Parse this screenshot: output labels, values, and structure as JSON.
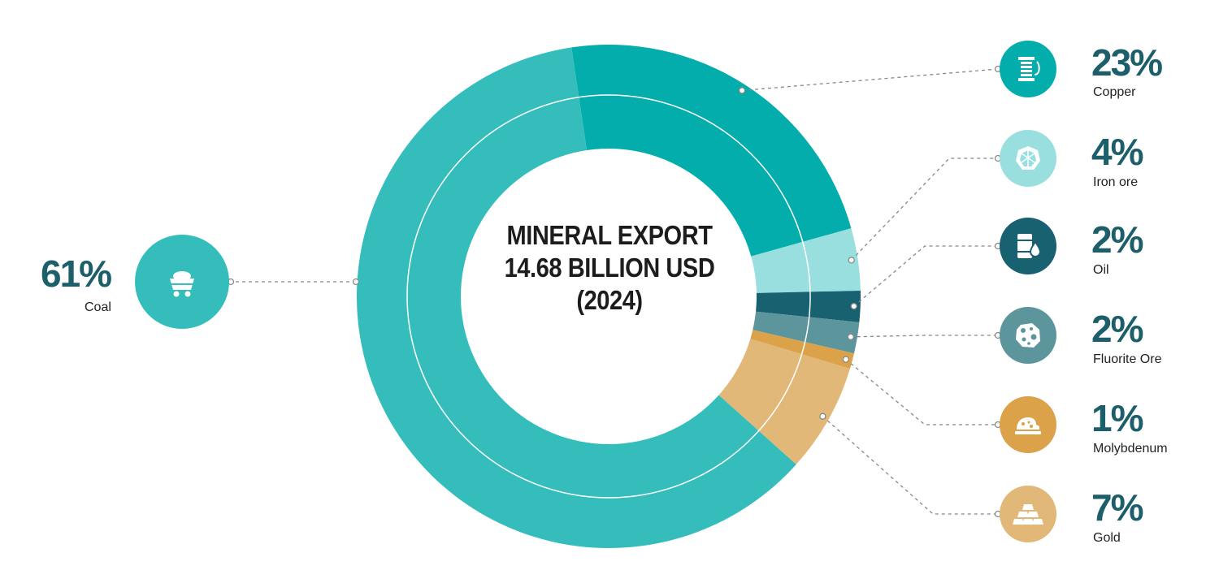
{
  "center_title": "MINERAL EXPORT 14.68 BILLION USD (2024)",
  "chart_data": {
    "type": "pie",
    "title": "MINERAL EXPORT 14.68 BILLION USD (2024)",
    "slices": [
      {
        "label": "Copper",
        "value": 23,
        "display": "23%",
        "color": "#03adab",
        "icon": "copper-spool-icon"
      },
      {
        "label": "Iron ore",
        "value": 4,
        "display": "4%",
        "color": "#9adfdf",
        "icon": "iron-ore-icon"
      },
      {
        "label": "Oil",
        "value": 2,
        "display": "2%",
        "color": "#176170",
        "icon": "oil-barrel-icon"
      },
      {
        "label": "Fluorite Ore",
        "value": 2,
        "display": "2%",
        "color": "#5d959c",
        "icon": "fluorite-ore-icon"
      },
      {
        "label": "Molybdenum",
        "value": 1,
        "display": "1%",
        "color": "#dba24a",
        "icon": "molybdenum-icon"
      },
      {
        "label": "Gold",
        "value": 7,
        "display": "7%",
        "color": "#e2b878",
        "icon": "gold-bars-icon"
      },
      {
        "label": "Coal",
        "value": 61,
        "display": "61%",
        "color": "#35bdbc",
        "icon": "coal-cart-icon"
      }
    ]
  }
}
